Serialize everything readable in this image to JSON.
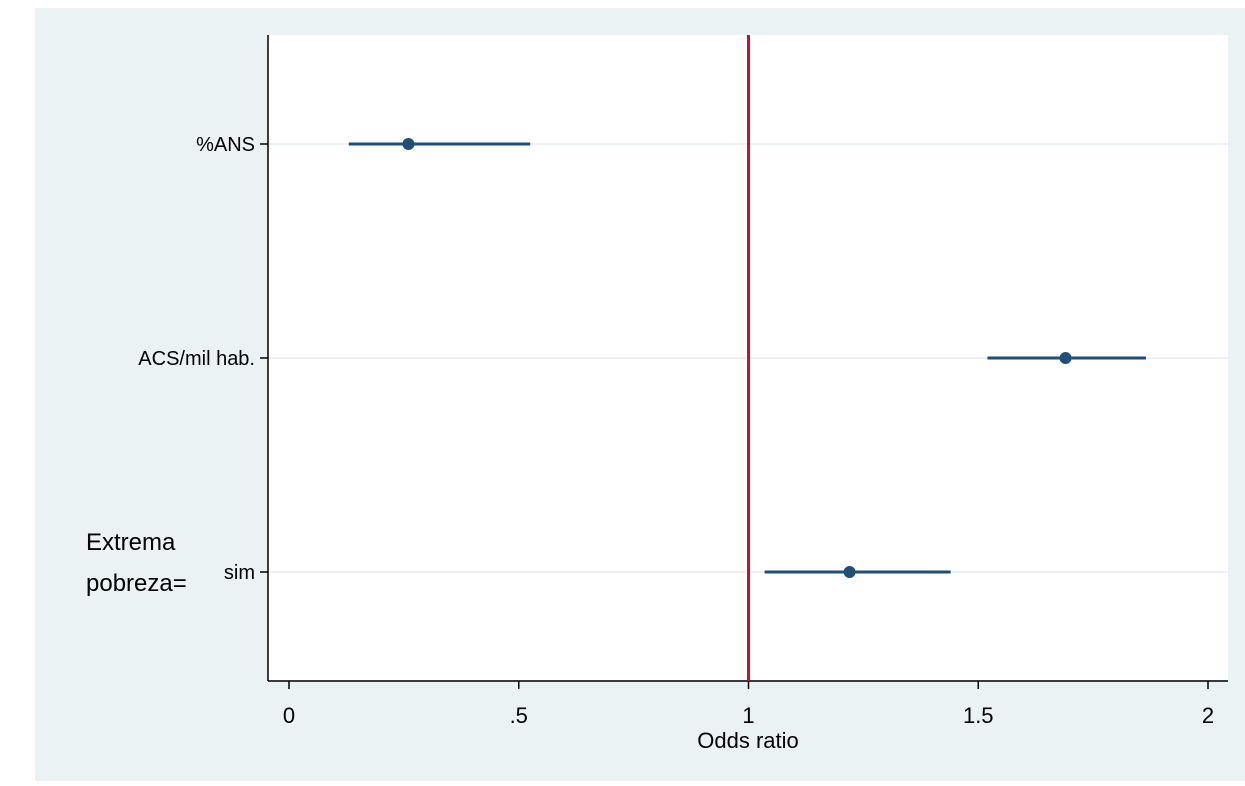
{
  "chart_data": {
    "type": "scatter",
    "xlabel": "Odds ratio",
    "xlim": [
      0,
      2
    ],
    "xticks": [
      {
        "value": 0,
        "label": "0"
      },
      {
        "value": 0.5,
        "label": ".5"
      },
      {
        "value": 1,
        "label": "1"
      },
      {
        "value": 1.5,
        "label": "1.5"
      },
      {
        "value": 2,
        "label": "2"
      }
    ],
    "reference_line": {
      "x": 1,
      "color": "#c8102e"
    },
    "grid": true,
    "marker_color": "#1f4e79",
    "points": [
      {
        "label": "%ANS",
        "or": 0.26,
        "ci_low": 0.13,
        "ci_high": 0.525
      },
      {
        "label": "ACS/mil hab.",
        "or": 1.69,
        "ci_low": 1.52,
        "ci_high": 1.865
      },
      {
        "label": "sim",
        "group_label_line1": "Extrema",
        "group_label_line2": "pobreza=",
        "or": 1.22,
        "ci_low": 1.035,
        "ci_high": 1.44
      }
    ]
  }
}
